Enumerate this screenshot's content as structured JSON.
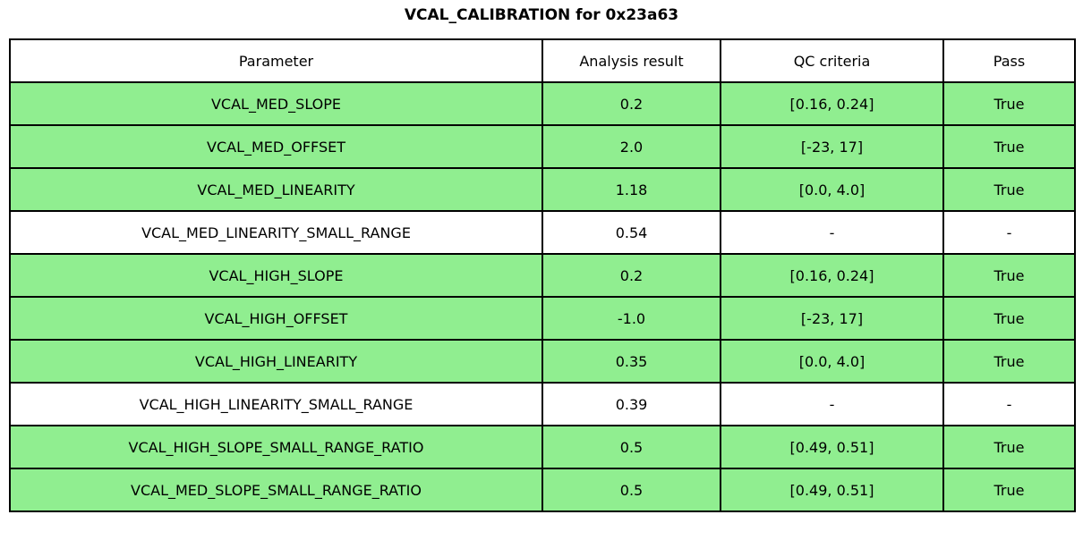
{
  "title": "VCAL_CALIBRATION for 0x23a63",
  "colors": {
    "pass_row_bg": "#90EE90",
    "neutral_row_bg": "#FFFFFF",
    "border": "#000000",
    "text": "#000000"
  },
  "table": {
    "columns": [
      "Parameter",
      "Analysis result",
      "QC criteria",
      "Pass"
    ],
    "rows": [
      {
        "parameter": "VCAL_MED_SLOPE",
        "analysis_result": "0.2",
        "qc_criteria": "[0.16, 0.24]",
        "pass": "True",
        "highlighted": true
      },
      {
        "parameter": "VCAL_MED_OFFSET",
        "analysis_result": "2.0",
        "qc_criteria": "[-23, 17]",
        "pass": "True",
        "highlighted": true
      },
      {
        "parameter": "VCAL_MED_LINEARITY",
        "analysis_result": "1.18",
        "qc_criteria": "[0.0, 4.0]",
        "pass": "True",
        "highlighted": true
      },
      {
        "parameter": "VCAL_MED_LINEARITY_SMALL_RANGE",
        "analysis_result": "0.54",
        "qc_criteria": "-",
        "pass": "-",
        "highlighted": false
      },
      {
        "parameter": "VCAL_HIGH_SLOPE",
        "analysis_result": "0.2",
        "qc_criteria": "[0.16, 0.24]",
        "pass": "True",
        "highlighted": true
      },
      {
        "parameter": "VCAL_HIGH_OFFSET",
        "analysis_result": "-1.0",
        "qc_criteria": "[-23, 17]",
        "pass": "True",
        "highlighted": true
      },
      {
        "parameter": "VCAL_HIGH_LINEARITY",
        "analysis_result": "0.35",
        "qc_criteria": "[0.0, 4.0]",
        "pass": "True",
        "highlighted": true
      },
      {
        "parameter": "VCAL_HIGH_LINEARITY_SMALL_RANGE",
        "analysis_result": "0.39",
        "qc_criteria": "-",
        "pass": "-",
        "highlighted": false
      },
      {
        "parameter": "VCAL_HIGH_SLOPE_SMALL_RANGE_RATIO",
        "analysis_result": "0.5",
        "qc_criteria": "[0.49, 0.51]",
        "pass": "True",
        "highlighted": true
      },
      {
        "parameter": "VCAL_MED_SLOPE_SMALL_RANGE_RATIO",
        "analysis_result": "0.5",
        "qc_criteria": "[0.49, 0.51]",
        "pass": "True",
        "highlighted": true
      }
    ]
  },
  "chart_data": {
    "type": "table",
    "title": "VCAL_CALIBRATION for 0x23a63",
    "columns": [
      "Parameter",
      "Analysis result",
      "QC criteria",
      "Pass"
    ],
    "rows": [
      [
        "VCAL_MED_SLOPE",
        "0.2",
        "[0.16, 0.24]",
        "True"
      ],
      [
        "VCAL_MED_OFFSET",
        "2.0",
        "[-23, 17]",
        "True"
      ],
      [
        "VCAL_MED_LINEARITY",
        "1.18",
        "[0.0, 4.0]",
        "True"
      ],
      [
        "VCAL_MED_LINEARITY_SMALL_RANGE",
        "0.54",
        "-",
        "-"
      ],
      [
        "VCAL_HIGH_SLOPE",
        "0.2",
        "[0.16, 0.24]",
        "True"
      ],
      [
        "VCAL_HIGH_OFFSET",
        "-1.0",
        "[-23, 17]",
        "True"
      ],
      [
        "VCAL_HIGH_LINEARITY",
        "0.35",
        "[0.0, 4.0]",
        "True"
      ],
      [
        "VCAL_HIGH_LINEARITY_SMALL_RANGE",
        "0.39",
        "-",
        "-"
      ],
      [
        "VCAL_HIGH_SLOPE_SMALL_RANGE_RATIO",
        "0.5",
        "[0.49, 0.51]",
        "True"
      ],
      [
        "VCAL_MED_SLOPE_SMALL_RANGE_RATIO",
        "0.5",
        "[0.49, 0.51]",
        "True"
      ]
    ],
    "row_highlighted": [
      true,
      true,
      true,
      false,
      true,
      true,
      true,
      false,
      true,
      true
    ],
    "layout_hints": {
      "header_bg": "#FFFFFF",
      "highlight_bg": "#90EE90",
      "cell_text_align": "center",
      "border_color": "#000000"
    }
  }
}
